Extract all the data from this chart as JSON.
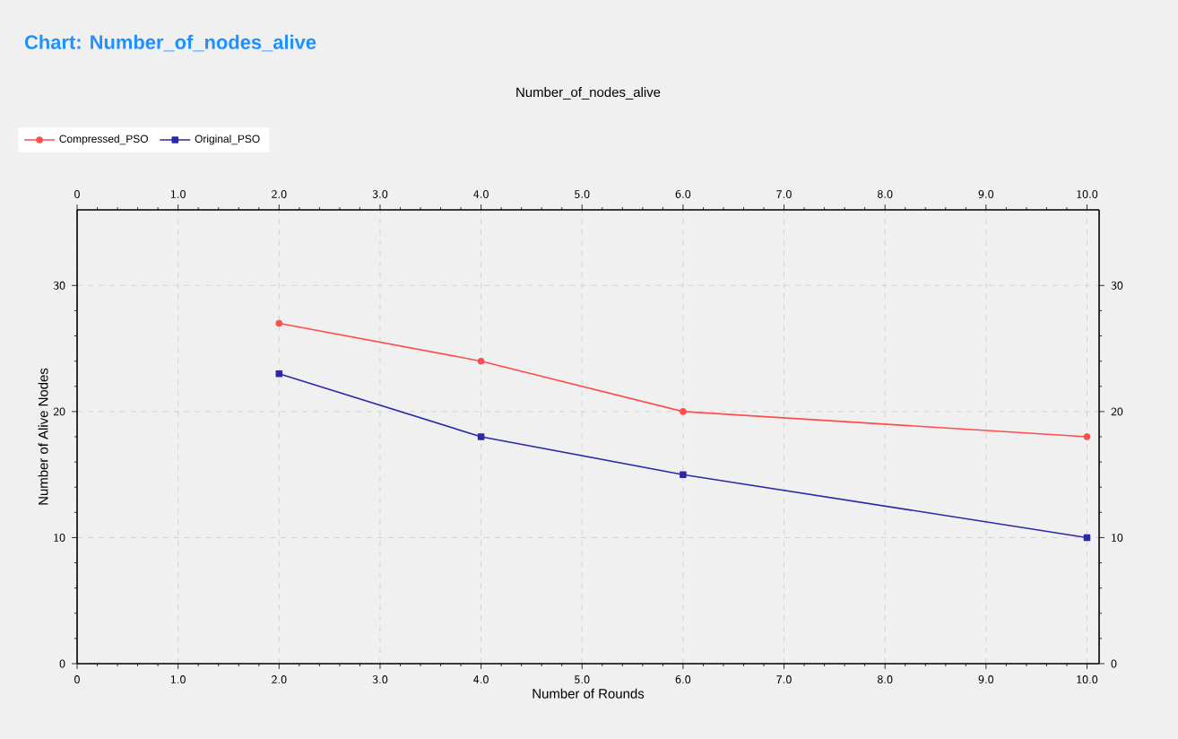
{
  "chart_data": {
    "type": "line",
    "title": "Chart: Number_of_nodes_alive",
    "subtitle": "Number_of_nodes_alive",
    "xlabel": "Number of Rounds",
    "ylabel": "Number of Alive Nodes",
    "x": [
      2,
      4,
      6,
      10
    ],
    "series": [
      {
        "name": "Compressed_PSO",
        "color": "#ff4d4d",
        "marker": "circle",
        "values": [
          27,
          24,
          20,
          18
        ]
      },
      {
        "name": "Original_PSO",
        "color": "#2a2aa6",
        "marker": "square",
        "values": [
          23,
          18,
          15,
          10
        ]
      }
    ],
    "xlim": [
      0,
      10.12
    ],
    "ylim": [
      0,
      36
    ],
    "xticks": [
      0,
      {
        "value": 1,
        "label": "1.0"
      },
      {
        "value": 2,
        "label": "2.0"
      },
      {
        "value": 3,
        "label": "3.0"
      },
      {
        "value": 4,
        "label": "4.0"
      },
      {
        "value": 5,
        "label": "5.0"
      },
      {
        "value": 6,
        "label": "6.0"
      },
      {
        "value": 7,
        "label": "7.0"
      },
      {
        "value": 8,
        "label": "8.0"
      },
      {
        "value": 9,
        "label": "9.0"
      },
      {
        "value": 10,
        "label": "10.0"
      }
    ],
    "x2lim": [
      0,
      10.12
    ],
    "x2ticks": [
      0,
      {
        "value": 1,
        "label": "1.0"
      },
      {
        "value": 2,
        "label": "2.0"
      },
      {
        "value": 3,
        "label": "3.0"
      },
      {
        "value": 4,
        "label": "4.0"
      },
      {
        "value": 5,
        "label": "5.0"
      },
      {
        "value": 6,
        "label": "6.0"
      },
      {
        "value": 7,
        "label": "7.0"
      },
      {
        "value": 8,
        "label": "8.0"
      },
      {
        "value": 9,
        "label": "9.0"
      },
      {
        "value": 10,
        "label": "10.0"
      }
    ],
    "yticks": [
      0,
      10,
      20,
      30
    ],
    "y2lim": [
      0,
      36
    ],
    "y2ticks": [
      0,
      10,
      20,
      30
    ],
    "grid": true,
    "legend": "top left"
  }
}
